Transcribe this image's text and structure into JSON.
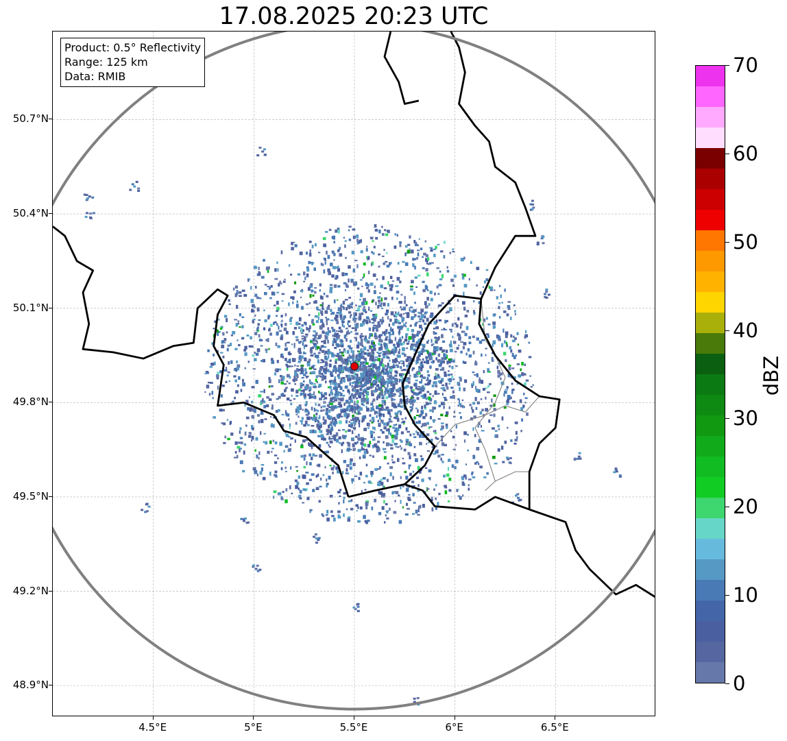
{
  "title": "17.08.2025 20:23 UTC",
  "info_box": {
    "product": "Product: 0.5° Reflectivity",
    "range": "Range: 125 km",
    "source": "Data: RMIB"
  },
  "map": {
    "lon_range": [
      4.0,
      7.0
    ],
    "lat_range": [
      48.8,
      50.98
    ],
    "radar_site": {
      "lon": 5.5,
      "lat": 49.915,
      "marker_color": "#e00000"
    },
    "range_ring_color": "#808080",
    "grid": true
  },
  "axes": {
    "x_ticks": [
      {
        "value": 4.5,
        "label": "4.5°E"
      },
      {
        "value": 5.0,
        "label": "5°E"
      },
      {
        "value": 5.5,
        "label": "5.5°E"
      },
      {
        "value": 6.0,
        "label": "6°E"
      },
      {
        "value": 6.5,
        "label": "6.5°E"
      }
    ],
    "y_ticks": [
      {
        "value": 50.7,
        "label": "50.7°N"
      },
      {
        "value": 50.4,
        "label": "50.4°N"
      },
      {
        "value": 50.1,
        "label": "50.1°N"
      },
      {
        "value": 49.8,
        "label": "49.8°N"
      },
      {
        "value": 49.5,
        "label": "49.5°N"
      },
      {
        "value": 49.2,
        "label": "49.2°N"
      },
      {
        "value": 48.9,
        "label": "48.9°N"
      }
    ]
  },
  "colorbar": {
    "label": "dBZ",
    "min": 0,
    "max": 70,
    "step": 2.5,
    "colors": [
      "#6677aa",
      "#5566a0",
      "#4a5fa0",
      "#4466a8",
      "#4a7ab5",
      "#5599c4",
      "#66bbdd",
      "#66d6c8",
      "#3ed66e",
      "#11cc22",
      "#11bb22",
      "#11aa1a",
      "#119911",
      "#0e8a12",
      "#0b7a12",
      "#0a6010",
      "#4a7a0a",
      "#aab00a",
      "#ffd500",
      "#ffb300",
      "#ff9900",
      "#ff7700",
      "#ee0000",
      "#cc0000",
      "#aa0000",
      "#7a0000",
      "#ffddff",
      "#ffaaff",
      "#ff66ff",
      "#ee33ee"
    ],
    "ticks": [
      {
        "value": 0,
        "label": "0"
      },
      {
        "value": 10,
        "label": "10"
      },
      {
        "value": 20,
        "label": "20"
      },
      {
        "value": 30,
        "label": "30"
      },
      {
        "value": 40,
        "label": "40"
      },
      {
        "value": 50,
        "label": "50"
      },
      {
        "value": 60,
        "label": "60"
      },
      {
        "value": 70,
        "label": "70"
      }
    ]
  },
  "borders": [
    {
      "name": "Belgium–France border",
      "points": [
        [
          4.0,
          50.36
        ],
        [
          4.06,
          50.33
        ],
        [
          4.12,
          50.25
        ],
        [
          4.2,
          50.22
        ],
        [
          4.15,
          50.15
        ],
        [
          4.18,
          50.05
        ],
        [
          4.15,
          49.97
        ],
        [
          4.3,
          49.96
        ],
        [
          4.45,
          49.94
        ],
        [
          4.6,
          49.98
        ],
        [
          4.7,
          49.99
        ],
        [
          4.72,
          50.1
        ],
        [
          4.82,
          50.16
        ],
        [
          4.87,
          50.14
        ],
        [
          4.82,
          50.08
        ],
        [
          4.8,
          49.98
        ],
        [
          4.85,
          49.92
        ],
        [
          4.82,
          49.79
        ],
        [
          4.95,
          49.8
        ],
        [
          5.1,
          49.76
        ],
        [
          5.15,
          49.71
        ],
        [
          5.26,
          49.69
        ],
        [
          5.33,
          49.65
        ],
        [
          5.42,
          49.6
        ],
        [
          5.47,
          49.5
        ]
      ]
    },
    {
      "name": "Luxembourg–France border",
      "points": [
        [
          5.47,
          49.5
        ],
        [
          5.6,
          49.52
        ],
        [
          5.75,
          49.54
        ],
        [
          5.84,
          49.52
        ],
        [
          5.9,
          49.47
        ],
        [
          6.1,
          49.46
        ],
        [
          6.2,
          49.5
        ],
        [
          6.37,
          49.46
        ]
      ]
    },
    {
      "name": "Belgium–Luxembourg border",
      "points": [
        [
          5.75,
          49.54
        ],
        [
          5.85,
          49.6
        ],
        [
          5.9,
          49.66
        ],
        [
          5.8,
          49.73
        ],
        [
          5.75,
          49.79
        ],
        [
          5.74,
          49.86
        ],
        [
          5.8,
          49.95
        ],
        [
          5.87,
          50.05
        ],
        [
          6.0,
          50.14
        ],
        [
          6.13,
          50.13
        ]
      ]
    },
    {
      "name": "Belgium–Germany border",
      "points": [
        [
          6.13,
          50.13
        ],
        [
          6.2,
          50.23
        ],
        [
          6.3,
          50.33
        ],
        [
          6.4,
          50.33
        ],
        [
          6.35,
          50.42
        ],
        [
          6.3,
          50.5
        ],
        [
          6.2,
          50.55
        ],
        [
          6.17,
          50.63
        ],
        [
          6.1,
          50.68
        ],
        [
          6.02,
          50.75
        ],
        [
          6.05,
          50.85
        ],
        [
          6.02,
          50.93
        ],
        [
          5.98,
          50.98
        ]
      ]
    },
    {
      "name": "Luxembourg–Germany border",
      "points": [
        [
          6.13,
          50.13
        ],
        [
          6.12,
          50.05
        ],
        [
          6.2,
          49.95
        ],
        [
          6.3,
          49.87
        ],
        [
          6.42,
          49.82
        ],
        [
          6.52,
          49.81
        ],
        [
          6.5,
          49.72
        ],
        [
          6.42,
          49.67
        ],
        [
          6.37,
          49.58
        ],
        [
          6.37,
          49.46
        ]
      ]
    },
    {
      "name": "France–Germany border",
      "points": [
        [
          6.37,
          49.46
        ],
        [
          6.55,
          49.42
        ],
        [
          6.6,
          49.33
        ],
        [
          6.67,
          49.27
        ],
        [
          6.8,
          49.19
        ],
        [
          6.9,
          49.22
        ],
        [
          7.0,
          49.18
        ]
      ]
    },
    {
      "name": "Netherlands border",
      "points": [
        [
          5.68,
          50.98
        ],
        [
          5.65,
          50.9
        ],
        [
          5.72,
          50.82
        ],
        [
          5.75,
          50.75
        ],
        [
          5.82,
          50.76
        ]
      ]
    }
  ],
  "admin_lines": [
    {
      "points": [
        [
          6.13,
          50.13
        ],
        [
          6.15,
          50.0
        ],
        [
          6.2,
          49.95
        ],
        [
          6.25,
          49.88
        ],
        [
          6.2,
          49.8
        ],
        [
          6.15,
          49.76
        ],
        [
          6.1,
          49.72
        ],
        [
          6.15,
          49.65
        ],
        [
          6.2,
          49.55
        ],
        [
          6.15,
          49.52
        ]
      ]
    },
    {
      "points": [
        [
          5.9,
          49.66
        ],
        [
          6.0,
          49.73
        ],
        [
          6.15,
          49.76
        ],
        [
          6.25,
          49.79
        ],
        [
          6.35,
          49.77
        ],
        [
          6.42,
          49.82
        ]
      ]
    },
    {
      "points": [
        [
          6.2,
          49.55
        ],
        [
          6.3,
          49.58
        ],
        [
          6.37,
          49.58
        ]
      ]
    }
  ]
}
